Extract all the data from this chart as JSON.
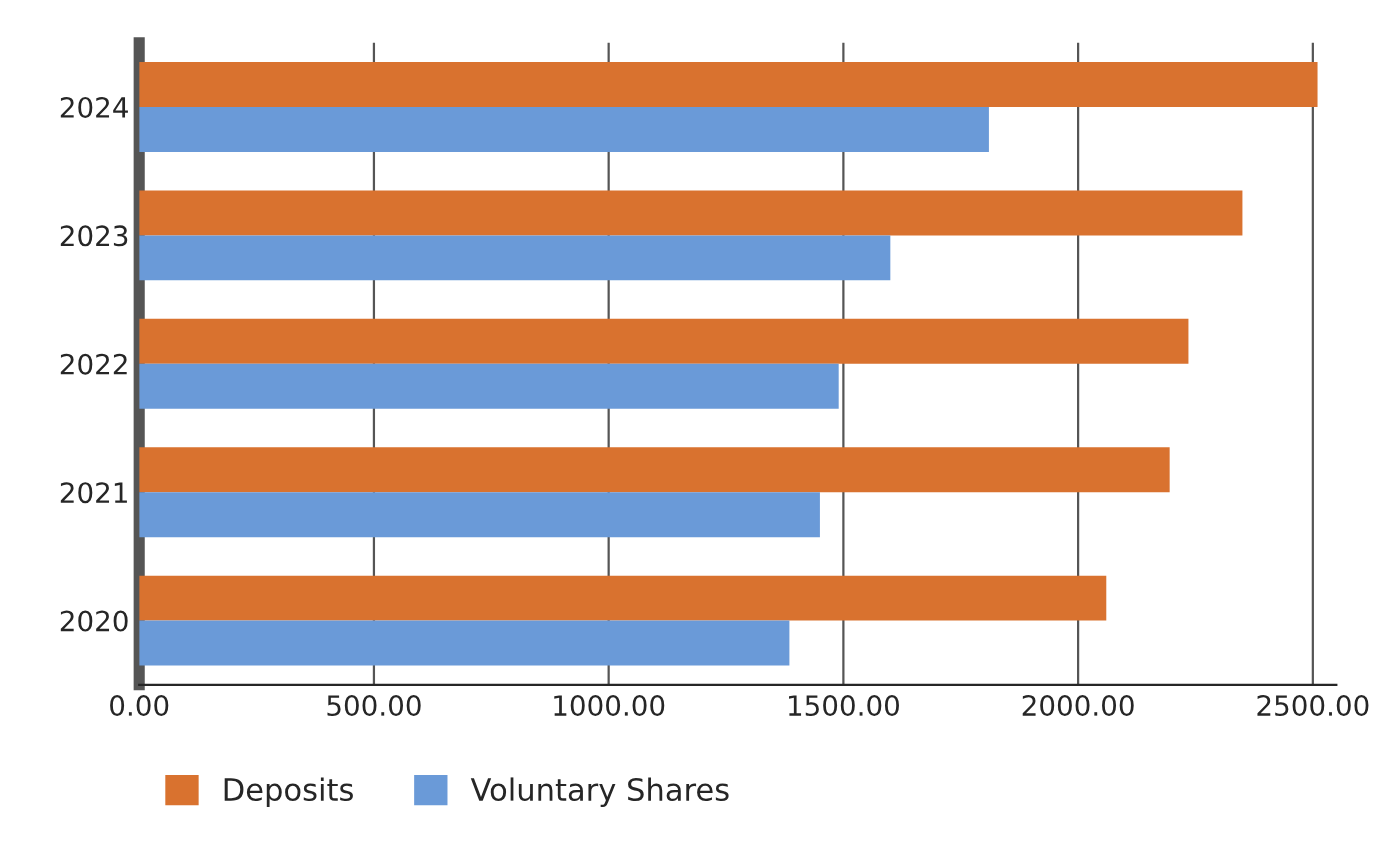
{
  "chart_data": {
    "type": "bar",
    "orientation": "horizontal",
    "categories": [
      "2024",
      "2023",
      "2022",
      "2021",
      "2020"
    ],
    "series": [
      {
        "name": "Deposits",
        "color": "#d9722f",
        "values": [
          2510,
          2350,
          2235,
          2195,
          2060
        ]
      },
      {
        "name": "Voluntary Shares",
        "color": "#6a9ad8",
        "values": [
          1810,
          1600,
          1490,
          1450,
          1385
        ]
      }
    ],
    "xlim": [
      0,
      2550
    ],
    "xticks": [
      {
        "value": 0,
        "label": "0.00"
      },
      {
        "value": 500,
        "label": "500.00"
      },
      {
        "value": 1000,
        "label": "1000.00"
      },
      {
        "value": 1500,
        "label": "1500.00"
      },
      {
        "value": 2000,
        "label": "2000.00"
      },
      {
        "value": 2500,
        "label": "2500.00"
      }
    ],
    "grid": "x",
    "legend": "bottom"
  }
}
